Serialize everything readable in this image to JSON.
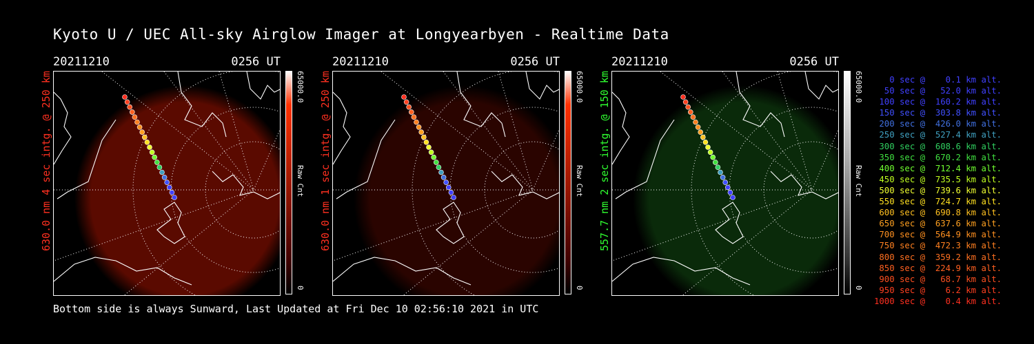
{
  "title": "Kyoto U / UEC All-sky Airglow Imager at Longyearbyen - Realtime Data",
  "footer": "Bottom side is always Sunward, Last Updated at Fri Dec 10 02:56:10 2021 in UTC",
  "panels": [
    {
      "date": "20211210",
      "time": "0256 UT",
      "label": "630.0 nm 4 sec intg. @ 250 km",
      "label_color": "#ff3020",
      "scale_max": "65000.0",
      "scale_min": "0",
      "unit": "Raw Cnt",
      "colorbar_color": "#ff3000",
      "glow_color": "#5a0a00"
    },
    {
      "date": "20211210",
      "time": "0256 UT",
      "label": "630.0 nm 1 sec intg. @ 250 km",
      "label_color": "#ff3020",
      "scale_max": "65000.0",
      "scale_min": "0",
      "unit": "Raw Cnt",
      "colorbar_color": "#ff3000",
      "glow_color": "#2a0400"
    },
    {
      "date": "20211210",
      "time": "0256 UT",
      "label": "557.7 nm 2 sec intg. @ 150 km",
      "label_color": "#30ff30",
      "scale_max": "65000.0",
      "scale_min": "0",
      "unit": "Raw Cnt",
      "colorbar_color": "#ffffff",
      "glow_color": "#0a2a0a"
    }
  ],
  "legend": [
    {
      "text": "   0 sec @    0.1 km alt.",
      "color": "#4040ff"
    },
    {
      "text": "  50 sec @   52.0 km alt.",
      "color": "#4040ff"
    },
    {
      "text": " 100 sec @  160.2 km alt.",
      "color": "#4040ff"
    },
    {
      "text": " 150 sec @  303.8 km alt.",
      "color": "#4050ff"
    },
    {
      "text": " 200 sec @  426.0 km alt.",
      "color": "#4070e0"
    },
    {
      "text": " 250 sec @  527.4 km alt.",
      "color": "#40a0c0"
    },
    {
      "text": " 300 sec @  608.6 km alt.",
      "color": "#30d060"
    },
    {
      "text": " 350 sec @  670.2 km alt.",
      "color": "#40e040"
    },
    {
      "text": " 400 sec @  712.4 km alt.",
      "color": "#70ff30"
    },
    {
      "text": " 450 sec @  735.5 km alt.",
      "color": "#c0ff20"
    },
    {
      "text": " 500 sec @  739.6 km alt.",
      "color": "#f0ff30"
    },
    {
      "text": " 550 sec @  724.7 km alt.",
      "color": "#ffe020"
    },
    {
      "text": " 600 sec @  690.8 km alt.",
      "color": "#ffc020"
    },
    {
      "text": " 650 sec @  637.6 km alt.",
      "color": "#ffa020"
    },
    {
      "text": " 700 sec @  564.9 km alt.",
      "color": "#ff9020"
    },
    {
      "text": " 750 sec @  472.3 km alt.",
      "color": "#ff8020"
    },
    {
      "text": " 800 sec @  359.2 km alt.",
      "color": "#ff7020"
    },
    {
      "text": " 850 sec @  224.9 km alt.",
      "color": "#ff6020"
    },
    {
      "text": " 900 sec @   68.7 km alt.",
      "color": "#ff5020"
    },
    {
      "text": " 950 sec @    6.2 km alt.",
      "color": "#ff4020"
    },
    {
      "text": "1000 sec @    0.4 km alt.",
      "color": "#ff3020"
    }
  ]
}
